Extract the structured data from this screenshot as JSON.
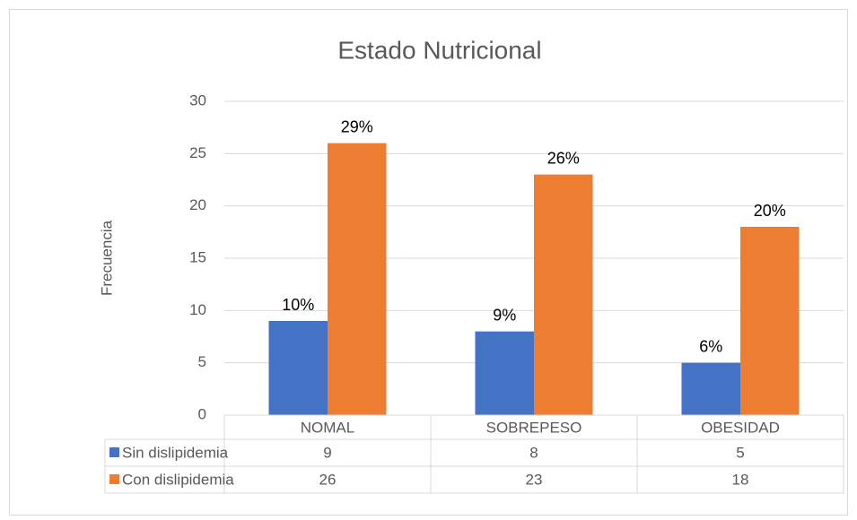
{
  "chart_data": {
    "type": "bar",
    "title": "Estado Nutricional",
    "ylabel": "Frecuencia",
    "categories": [
      "NOMAL",
      "SOBREPESO",
      "OBESIDAD"
    ],
    "series": [
      {
        "name": "Sin dislipidemia",
        "color": "#4472c4",
        "values": [
          9,
          8,
          5
        ],
        "percent_labels": [
          "10%",
          "9%",
          "6%"
        ]
      },
      {
        "name": "Con dislipidemia",
        "color": "#ed7d31",
        "values": [
          26,
          23,
          18
        ],
        "percent_labels": [
          "29%",
          "26%",
          "20%"
        ]
      }
    ],
    "ylim": [
      0,
      30
    ],
    "yticks": [
      0,
      5,
      10,
      15,
      20,
      25,
      30
    ],
    "grid": true,
    "data_table": true
  }
}
